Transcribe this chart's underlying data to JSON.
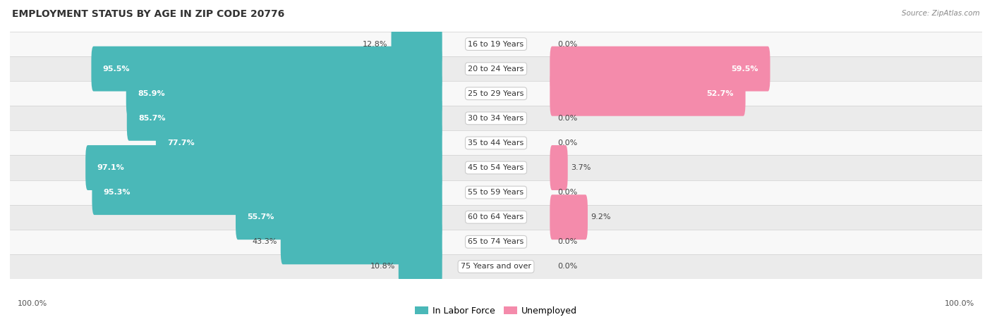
{
  "title": "EMPLOYMENT STATUS BY AGE IN ZIP CODE 20776",
  "source": "Source: ZipAtlas.com",
  "age_groups": [
    "16 to 19 Years",
    "20 to 24 Years",
    "25 to 29 Years",
    "30 to 34 Years",
    "35 to 44 Years",
    "45 to 54 Years",
    "55 to 59 Years",
    "60 to 64 Years",
    "65 to 74 Years",
    "75 Years and over"
  ],
  "in_labor_force": [
    12.8,
    95.5,
    85.9,
    85.7,
    77.7,
    97.1,
    95.3,
    55.7,
    43.3,
    10.8
  ],
  "unemployed": [
    0.0,
    59.5,
    52.7,
    0.0,
    0.0,
    3.7,
    0.0,
    9.2,
    0.0,
    0.0
  ],
  "labor_color": "#4ab8b8",
  "unemployed_color": "#f48bab",
  "title_fontsize": 10,
  "label_fontsize": 8,
  "legend_fontsize": 9,
  "axis_label_fontsize": 8,
  "row_colors": [
    "#f8f8f8",
    "#ebebeb"
  ]
}
